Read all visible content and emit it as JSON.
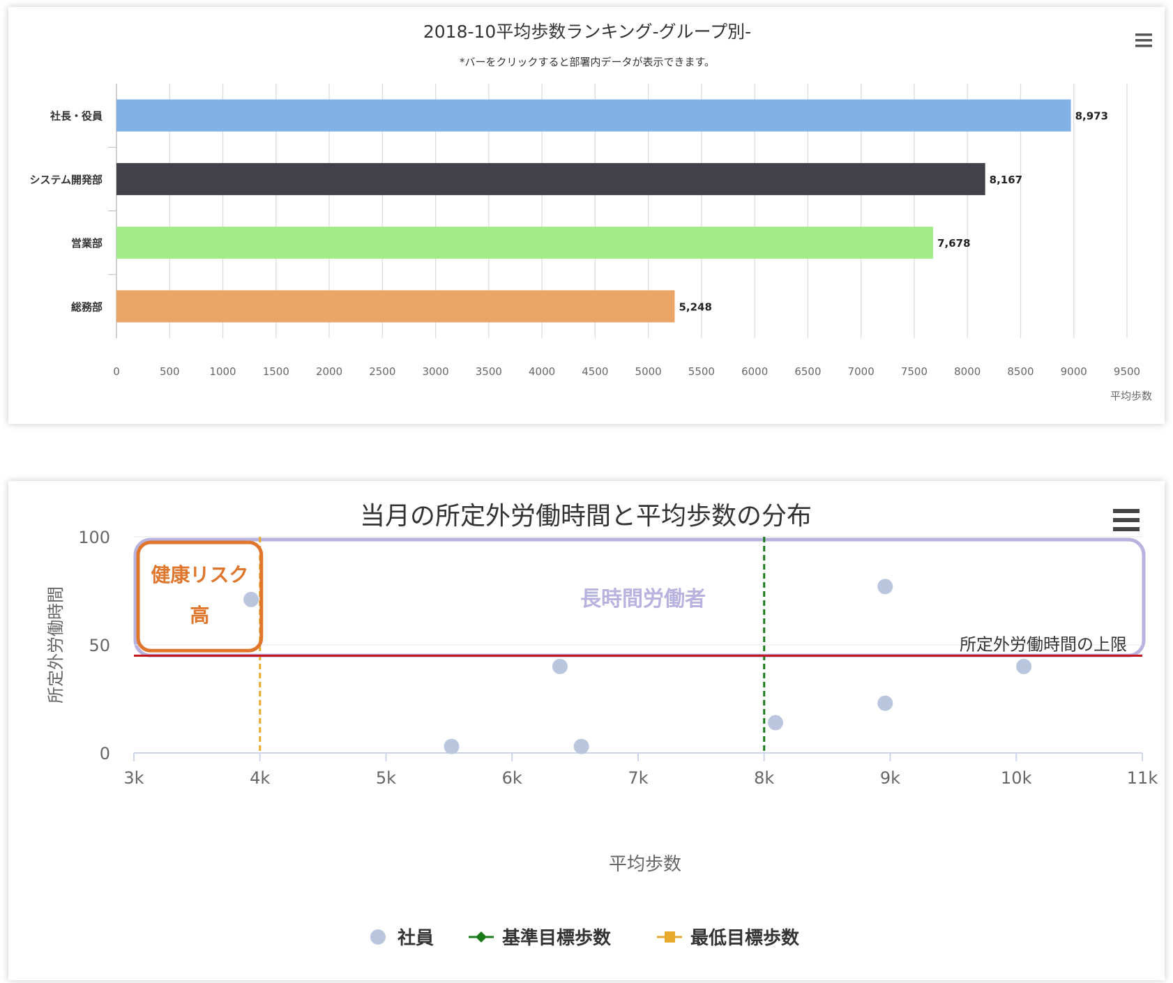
{
  "chart_data": [
    {
      "type": "bar",
      "orientation": "horizontal",
      "title": "2018-10平均歩数ランキング-グループ別-",
      "subtitle": "*バーをクリックすると部署内データが表示できます。",
      "xlabel": "平均歩数",
      "ylabel": "",
      "categories": [
        "社長・役員",
        "システム開発部",
        "営業部",
        "総務部"
      ],
      "values": [
        8973,
        8167,
        7678,
        5248
      ],
      "value_labels": [
        "8,973",
        "8,167",
        "7,678",
        "5,248"
      ],
      "colors": [
        "#82b1e6",
        "#424149",
        "#a3ea88",
        "#eba567"
      ],
      "xlim": [
        0,
        9500
      ],
      "xticks": [
        0,
        500,
        1000,
        1500,
        2000,
        2500,
        3000,
        3500,
        4000,
        4500,
        5000,
        5500,
        6000,
        6500,
        7000,
        7500,
        8000,
        8500,
        9000,
        9500
      ],
      "grid": true,
      "menu_icon": "hamburger-menu-icon"
    },
    {
      "type": "scatter",
      "title": "当月の所定外労働時間と平均歩数の分布",
      "xlabel": "平均歩数",
      "ylabel": "所定外労働時間",
      "xlim": [
        3000,
        11000
      ],
      "ylim": [
        0,
        100
      ],
      "xticks": [
        3000,
        4000,
        5000,
        6000,
        7000,
        8000,
        9000,
        10000,
        11000
      ],
      "xtick_labels": [
        "3k",
        "4k",
        "5k",
        "6k",
        "7k",
        "8k",
        "9k",
        "10k",
        "11k"
      ],
      "yticks": [
        0,
        50,
        100
      ],
      "series": [
        {
          "name": "社員",
          "color": "#b9c6de",
          "x": [
            3930,
            6380,
            5520,
            6550,
            8090,
            8960,
            8960,
            10060
          ],
          "y": [
            71,
            40,
            3,
            3,
            14,
            77,
            23,
            40
          ]
        }
      ],
      "reference_lines": [
        {
          "name": "基準目標歩数",
          "axis": "x",
          "value": 8000,
          "color": "#1a7a1a",
          "style": "dashed"
        },
        {
          "name": "最低目標歩数",
          "axis": "x",
          "value": 4000,
          "color": "#e8a82b",
          "style": "dashed"
        },
        {
          "label": "所定外労働時間の上限",
          "axis": "y",
          "value": 45,
          "color": "#c4161c",
          "style": "solid"
        }
      ],
      "annotations": [
        {
          "label_lines": [
            "健康リスク",
            "高"
          ],
          "color": "#e0762c",
          "x_range": [
            3000,
            4000
          ],
          "y_range": [
            48,
            100
          ]
        },
        {
          "label": "長時間労働者",
          "color": "#b7b3de",
          "x_range": [
            3000,
            11000
          ],
          "y_range": [
            47,
            100
          ]
        }
      ],
      "legend": {
        "placement": "bottom",
        "items": [
          {
            "label": "社員",
            "marker": "circle",
            "color": "#b9c6de"
          },
          {
            "label": "基準目標歩数",
            "marker": "line-diamond",
            "color": "#1a7a1a"
          },
          {
            "label": "最低目標歩数",
            "marker": "line-square",
            "color": "#e8a82b"
          }
        ]
      },
      "grid": false,
      "menu_icon": "hamburger-menu-icon"
    }
  ]
}
